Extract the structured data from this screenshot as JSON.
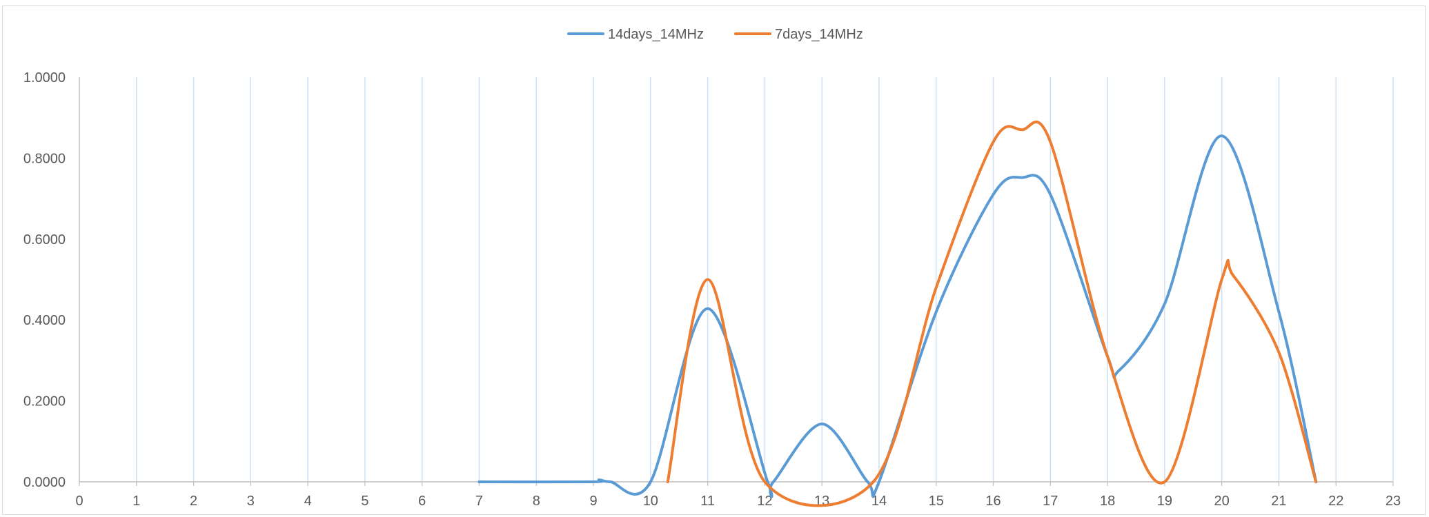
{
  "chart_data": {
    "type": "line",
    "smooth": true,
    "x": [
      0,
      1,
      2,
      3,
      4,
      5,
      6,
      7,
      8,
      9,
      10,
      11,
      12,
      13,
      14,
      15,
      16,
      17,
      18,
      19,
      20,
      21,
      22,
      23
    ],
    "xlim": [
      0,
      23
    ],
    "ylim": [
      0,
      1
    ],
    "y_ticks": [
      "0.0000",
      "0.2000",
      "0.4000",
      "0.6000",
      "0.8000",
      "1.0000"
    ],
    "x_ticks": [
      "0",
      "1",
      "2",
      "3",
      "4",
      "5",
      "6",
      "7",
      "8",
      "9",
      "10",
      "11",
      "12",
      "13",
      "14",
      "15",
      "16",
      "17",
      "18",
      "19",
      "20",
      "21",
      "22",
      "23"
    ],
    "vertical_gridlines": true,
    "legend_position": "top",
    "series": [
      {
        "name": "14days_14MHz",
        "color": "#5b9bd5",
        "points": [
          [
            7,
            0
          ],
          [
            9,
            0
          ],
          [
            9.1,
            0.005
          ],
          [
            9.3,
            0
          ],
          [
            10,
            0
          ],
          [
            11,
            0.428
          ],
          [
            12.05,
            0
          ],
          [
            12.15,
            0
          ],
          [
            13,
            0.143
          ],
          [
            13.8,
            0
          ],
          [
            14,
            0
          ],
          [
            15,
            0.42
          ],
          [
            16,
            0.71
          ],
          [
            16.5,
            0.752
          ],
          [
            17,
            0.71
          ],
          [
            18,
            0.31
          ],
          [
            18.2,
            0.275
          ],
          [
            19,
            0.44
          ],
          [
            20,
            0.855
          ],
          [
            21,
            0.42
          ],
          [
            21.65,
            0
          ]
        ]
      },
      {
        "name": "7days_14MHz",
        "color": "#ed7d31",
        "points": [
          [
            10.3,
            0
          ],
          [
            11,
            0.5
          ],
          [
            12,
            0
          ],
          [
            13.9,
            0
          ],
          [
            15,
            0.48
          ],
          [
            16,
            0.84
          ],
          [
            16.5,
            0.87
          ],
          [
            17,
            0.84
          ],
          [
            18,
            0.31
          ],
          [
            19,
            0
          ],
          [
            20,
            0.5
          ],
          [
            20.2,
            0.51
          ],
          [
            21,
            0.32
          ],
          [
            21.65,
            0
          ]
        ]
      }
    ]
  }
}
